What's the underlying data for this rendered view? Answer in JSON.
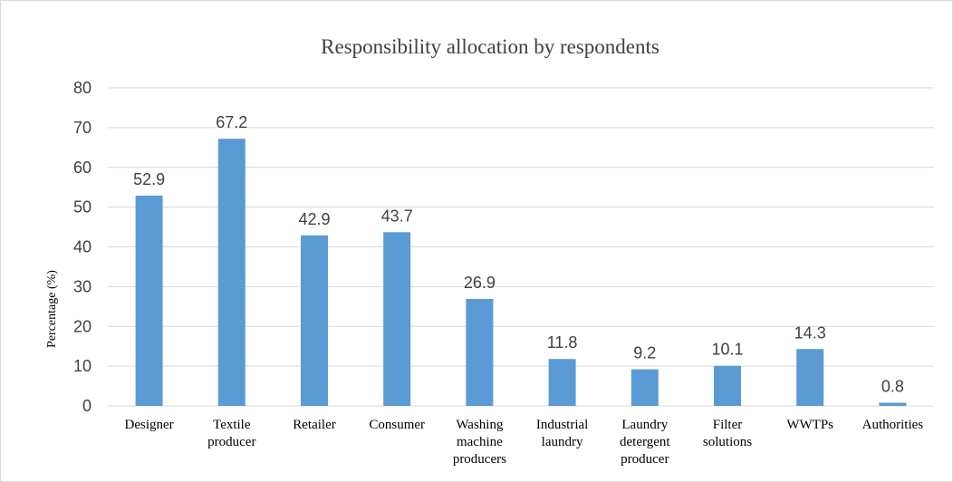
{
  "chart_data": {
    "type": "bar",
    "title": "Responsibility allocation by respondents",
    "ylabel": "Percentage (%)",
    "xlabel": "",
    "ylim": [
      0,
      80
    ],
    "yticks": [
      0,
      10,
      20,
      30,
      40,
      50,
      60,
      70,
      80
    ],
    "grid": true,
    "legend": "none",
    "bar_color": "#5b9bd5",
    "categories": [
      [
        "Designer"
      ],
      [
        "Textile",
        "producer"
      ],
      [
        "Retailer"
      ],
      [
        "Consumer"
      ],
      [
        "Washing",
        "machine",
        "producers"
      ],
      [
        "Industrial",
        "laundry"
      ],
      [
        "Laundry",
        "detergent",
        "producer"
      ],
      [
        "Filter",
        "solutions"
      ],
      [
        "WWTPs"
      ],
      [
        "Authorities"
      ]
    ],
    "values": [
      52.9,
      67.2,
      42.9,
      43.7,
      26.9,
      11.8,
      9.2,
      10.1,
      14.3,
      0.8
    ]
  }
}
